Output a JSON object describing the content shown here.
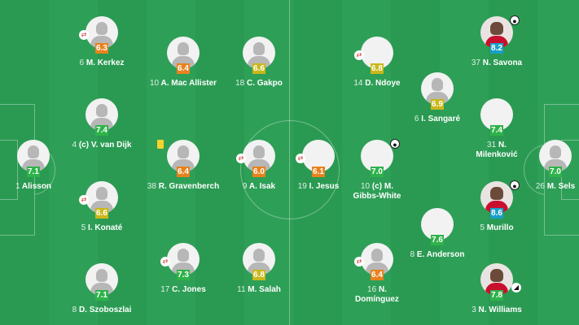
{
  "rating_colors": {
    "orange": "#e8821e",
    "yellow": "#c9b81a",
    "green": "#2fb34a",
    "teal": "#1aa0c8"
  },
  "home_players": [
    {
      "num": "1",
      "name": "Alisson",
      "rating": "7.1",
      "color": "green",
      "icon": ""
    },
    {
      "num": "6",
      "name": "M. Kerkez",
      "rating": "6.3",
      "color": "orange",
      "icon": "sub"
    },
    {
      "num": "4",
      "name": "(c) V. van Dijk",
      "rating": "7.4",
      "color": "green",
      "icon": ""
    },
    {
      "num": "5",
      "name": "I. Konaté",
      "rating": "6.6",
      "color": "yellow",
      "icon": "sub"
    },
    {
      "num": "8",
      "name": "D. Szoboszlai",
      "rating": "7.1",
      "color": "green",
      "icon": ""
    },
    {
      "num": "10",
      "name": "A. Mac Allister",
      "rating": "6.4",
      "color": "orange",
      "icon": ""
    },
    {
      "num": "38",
      "name": "R. Gravenberch",
      "rating": "6.4",
      "color": "orange",
      "icon": "card"
    },
    {
      "num": "17",
      "name": "C. Jones",
      "rating": "7.3",
      "color": "green",
      "icon": "sub"
    },
    {
      "num": "18",
      "name": "C. Gakpo",
      "rating": "6.6",
      "color": "yellow",
      "icon": ""
    },
    {
      "num": "9",
      "name": "A. Isak",
      "rating": "6.0",
      "color": "orange",
      "icon": "sub"
    },
    {
      "num": "11",
      "name": "M. Salah",
      "rating": "6.8",
      "color": "yellow",
      "icon": ""
    }
  ],
  "away_players": [
    {
      "num": "19",
      "name": "I. Jesus",
      "rating": "6.1",
      "color": "orange",
      "icon": "sub"
    },
    {
      "num": "14",
      "name": "D. Ndoye",
      "rating": "6.8",
      "color": "yellow",
      "icon": "sub"
    },
    {
      "num": "10",
      "name": "(c) M. Gibbs-White",
      "rating": "7.0",
      "color": "green",
      "icon": "goal"
    },
    {
      "num": "16",
      "name": "N. Domínguez",
      "rating": "6.4",
      "color": "orange",
      "icon": "sub"
    },
    {
      "num": "6",
      "name": "I. Sangaré",
      "rating": "6.9",
      "color": "yellow",
      "icon": ""
    },
    {
      "num": "8",
      "name": "E. Anderson",
      "rating": "7.6",
      "color": "green",
      "icon": ""
    },
    {
      "num": "37",
      "name": "N. Savona",
      "rating": "8.2",
      "color": "teal",
      "icon": "goal"
    },
    {
      "num": "31",
      "name": "N. Milenković",
      "rating": "7.4",
      "color": "green",
      "icon": ""
    },
    {
      "num": "5",
      "name": "Murillo",
      "rating": "8.6",
      "color": "teal",
      "icon": "goal"
    },
    {
      "num": "3",
      "name": "N. Williams",
      "rating": "7.8",
      "color": "green",
      "icon": "boot"
    },
    {
      "num": "26",
      "name": "M. Sels",
      "rating": "7.0",
      "color": "green",
      "icon": ""
    }
  ]
}
